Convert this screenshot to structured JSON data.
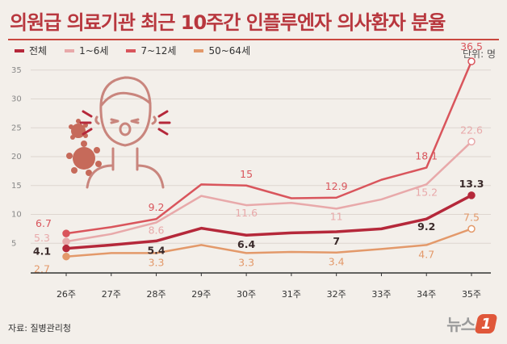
{
  "title": "의원급 의료기관 최근 10주간 인플루엔자 의사환자 분율",
  "unit": "단위: 명",
  "source": "자료: 질병관리청",
  "logo": {
    "text": "뉴스",
    "badge": "1"
  },
  "chart_data": {
    "type": "line",
    "title": "의원급 의료기관 최근 10주간 인플루엔자 의사환자 분율",
    "xlabel": "",
    "ylabel": "",
    "categories": [
      "26주",
      "27주",
      "28주",
      "29주",
      "30주",
      "31주",
      "32주",
      "33주",
      "34주",
      "35주"
    ],
    "ylim": [
      0,
      37
    ],
    "yticks": [
      5,
      10,
      15,
      20,
      25,
      30,
      35
    ],
    "grid": true,
    "legend_position": "top-left",
    "series": [
      {
        "name": "전체",
        "color": "#b5283a",
        "values": [
          4.1,
          4.7,
          5.4,
          7.6,
          6.4,
          6.8,
          7.0,
          7.5,
          9.2,
          13.3
        ],
        "labels": [
          "4.1",
          "",
          "5.4",
          "",
          "6.4",
          "",
          "7",
          "",
          "9.2",
          "13.3"
        ]
      },
      {
        "name": "1~6세",
        "color": "#e8a9aa",
        "values": [
          5.3,
          6.6,
          8.6,
          13.2,
          11.6,
          12.0,
          11.0,
          12.6,
          15.2,
          22.6
        ],
        "labels": [
          "5.3",
          "",
          "8.6",
          "",
          "11.6",
          "",
          "11",
          "",
          "15.2",
          "22.6"
        ]
      },
      {
        "name": "7~12세",
        "color": "#d9555c",
        "values": [
          6.7,
          7.8,
          9.2,
          15.2,
          15.0,
          12.8,
          12.9,
          16.0,
          18.1,
          36.5
        ],
        "labels": [
          "6.7",
          "",
          "9.2",
          "",
          "15",
          "",
          "12.9",
          "",
          "18.1",
          "36.5"
        ]
      },
      {
        "name": "50~64세",
        "color": "#e3996a",
        "values": [
          2.7,
          3.3,
          3.3,
          4.7,
          3.3,
          3.5,
          3.4,
          4.0,
          4.7,
          7.5
        ],
        "labels": [
          "2.7",
          "",
          "3.3",
          "",
          "3.3",
          "",
          "3.4",
          "",
          "4.7",
          "7.5"
        ]
      }
    ]
  }
}
